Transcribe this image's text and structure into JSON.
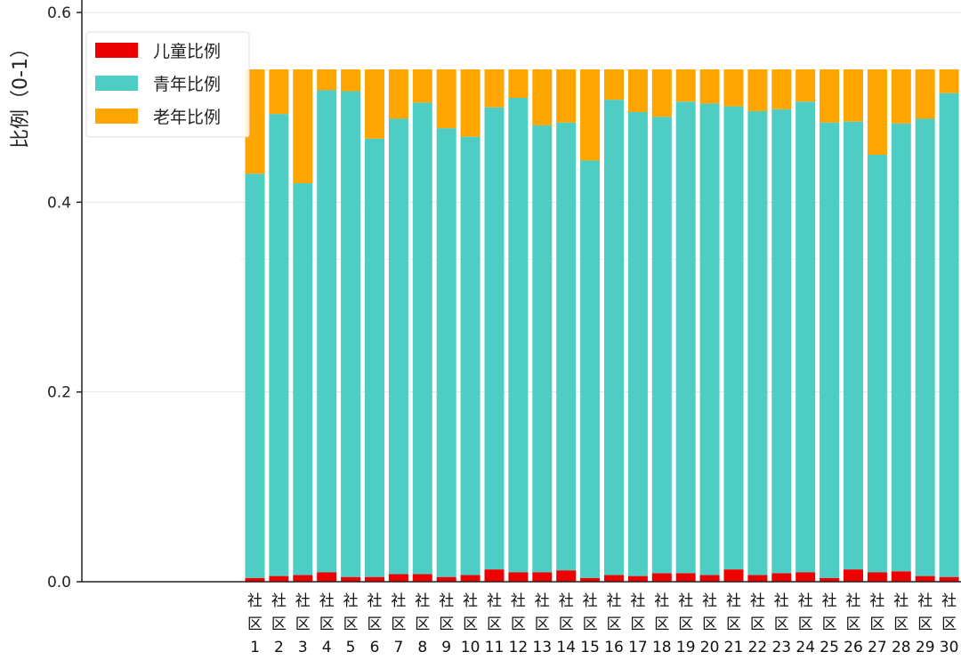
{
  "chart_data": {
    "type": "bar",
    "stacked": true,
    "title": "",
    "xlabel": "",
    "ylabel": "比例（0-1）",
    "ylim": [
      0,
      0.6
    ],
    "yticks": [
      "0.0",
      "0.2",
      "0.4",
      "0.6"
    ],
    "grid": true,
    "legend_position": "top-left",
    "categories": [
      "社区1",
      "社区2",
      "社区3",
      "社区4",
      "社区5",
      "社区6",
      "社区7",
      "社区8",
      "社区9",
      "社区10",
      "社区11",
      "社区12",
      "社区13",
      "社区14",
      "社区15",
      "社区16",
      "社区17",
      "社区18",
      "社区19",
      "社区20",
      "社区21",
      "社区22",
      "社区23",
      "社区24",
      "社区25",
      "社区26",
      "社区27",
      "社区28",
      "社区29",
      "社区30"
    ],
    "series": [
      {
        "name": "儿童比例",
        "color": "#ee0000",
        "values": [
          0.004,
          0.006,
          0.007,
          0.01,
          0.005,
          0.005,
          0.008,
          0.008,
          0.005,
          0.007,
          0.013,
          0.01,
          0.01,
          0.012,
          0.004,
          0.007,
          0.006,
          0.009,
          0.009,
          0.007,
          0.013,
          0.007,
          0.009,
          0.01,
          0.004,
          0.013,
          0.01,
          0.011,
          0.006,
          0.005
        ]
      },
      {
        "name": "青年比例",
        "color": "#4ecdc4",
        "values": [
          0.426,
          0.487,
          0.413,
          0.508,
          0.512,
          0.462,
          0.48,
          0.497,
          0.473,
          0.462,
          0.487,
          0.5,
          0.471,
          0.472,
          0.44,
          0.501,
          0.489,
          0.481,
          0.497,
          0.497,
          0.488,
          0.489,
          0.489,
          0.496,
          0.48,
          0.472,
          0.44,
          0.472,
          0.482,
          0.51
        ]
      },
      {
        "name": "老年比例",
        "color": "#ffa500",
        "values": [
          0.11,
          0.047,
          0.12,
          0.022,
          0.023,
          0.073,
          0.052,
          0.035,
          0.062,
          0.071,
          0.04,
          0.03,
          0.059,
          0.056,
          0.096,
          0.032,
          0.045,
          0.05,
          0.034,
          0.036,
          0.039,
          0.044,
          0.042,
          0.034,
          0.056,
          0.055,
          0.09,
          0.057,
          0.052,
          0.025
        ]
      }
    ]
  }
}
